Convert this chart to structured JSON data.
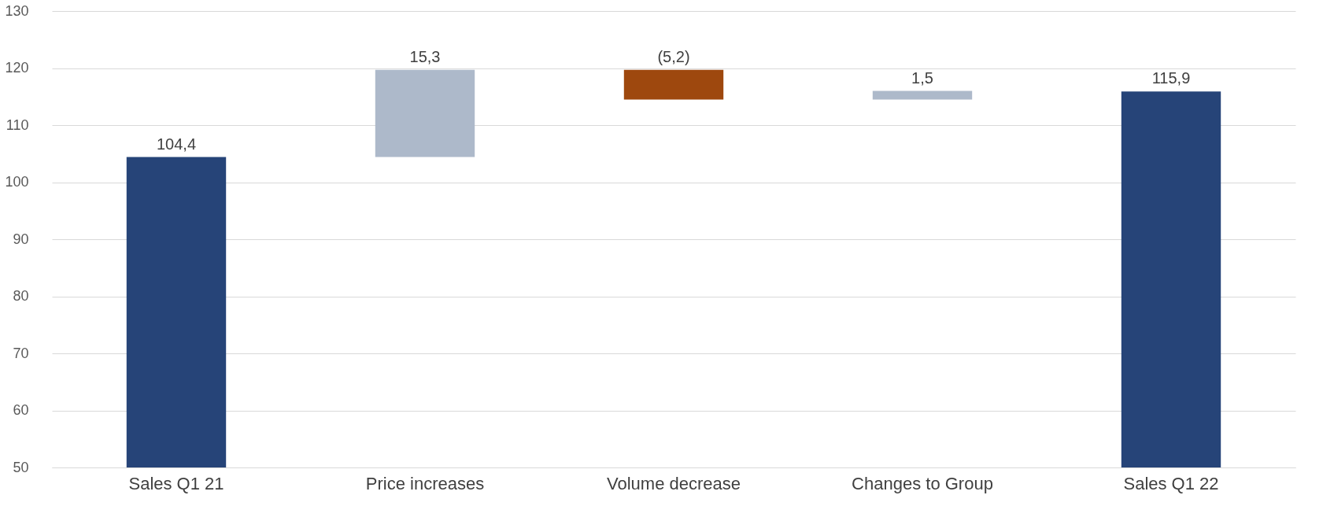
{
  "chart_data": {
    "type": "bar",
    "categories": [
      "Sales Q1 21",
      "Price increases",
      "Volume decrease",
      "Changes to Group",
      "Sales Q1 22"
    ],
    "base": [
      0,
      104.4,
      119.7,
      114.5,
      0
    ],
    "values": [
      104.4,
      15.3,
      -5.2,
      1.5,
      115.9
    ],
    "colors": [
      "#264478",
      "#adb9ca",
      "#9e480e",
      "#adb9ca",
      "#264478"
    ],
    "value_labels": [
      "104,4",
      "15,3",
      "(5,2)",
      "1,5",
      "115,9"
    ],
    "ylim": [
      50,
      130
    ],
    "yticks": [
      50,
      60,
      70,
      80,
      90,
      100,
      110,
      120,
      130
    ],
    "grid": "y"
  }
}
